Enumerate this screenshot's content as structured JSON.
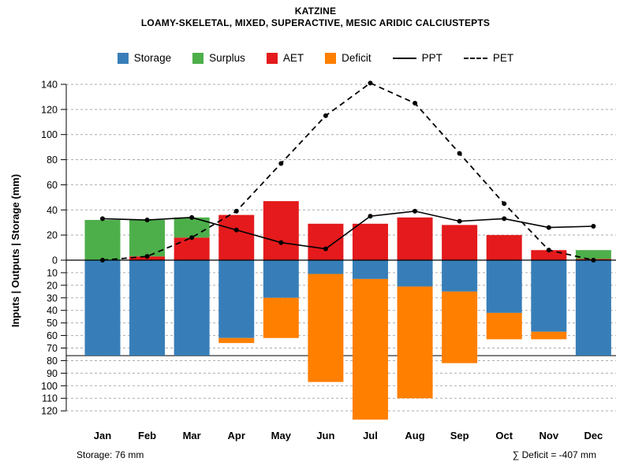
{
  "header": {
    "title": "KATZINE",
    "subtitle": "LOAMY-SKELETAL, MIXED, SUPERACTIVE, MESIC ARIDIC CALCIUSTEPTS"
  },
  "legend": [
    {
      "label": "Storage",
      "type": "box",
      "color": "#377EB8"
    },
    {
      "label": "Surplus",
      "type": "box",
      "color": "#4DAF4A"
    },
    {
      "label": "AET",
      "type": "box",
      "color": "#E41A1C"
    },
    {
      "label": "Deficit",
      "type": "box",
      "color": "#FF7F00"
    },
    {
      "label": "PPT",
      "type": "line",
      "style": "solid",
      "color": "#000000"
    },
    {
      "label": "PET",
      "type": "line",
      "style": "dashed",
      "color": "#000000"
    }
  ],
  "chart_data": {
    "type": "bar",
    "subtype": "monthly soil water balance: stacked bars above zero (AET+Surplus) and below zero (Storage+Deficit) with PPT/PET line overlays",
    "categories": [
      "Jan",
      "Feb",
      "Mar",
      "Apr",
      "May",
      "Jun",
      "Jul",
      "Aug",
      "Sep",
      "Oct",
      "Nov",
      "Dec"
    ],
    "series": [
      {
        "name": "AET",
        "type": "bar",
        "direction": "up",
        "color": "#E41A1C",
        "values": [
          0,
          3,
          18,
          36,
          47,
          29,
          29,
          34,
          28,
          20,
          8,
          1
        ]
      },
      {
        "name": "Surplus",
        "type": "bar",
        "direction": "up",
        "stack_on": "AET",
        "color": "#4DAF4A",
        "values": [
          32,
          29,
          16,
          0,
          0,
          0,
          0,
          0,
          0,
          0,
          0,
          7
        ]
      },
      {
        "name": "Storage",
        "type": "bar",
        "direction": "down",
        "color": "#377EB8",
        "values": [
          76,
          76,
          76,
          62,
          30,
          11,
          15,
          21,
          25,
          42,
          57,
          76
        ]
      },
      {
        "name": "Deficit",
        "type": "bar",
        "direction": "down",
        "stack_on": "Storage",
        "color": "#FF7F00",
        "values": [
          0,
          0,
          0,
          4,
          32,
          86,
          112,
          89,
          57,
          21,
          6,
          0
        ]
      },
      {
        "name": "PPT",
        "type": "line",
        "style": "solid",
        "color": "#000000",
        "values": [
          33,
          32,
          34,
          24,
          14,
          9,
          35,
          39,
          31,
          33,
          26,
          27
        ]
      },
      {
        "name": "PET",
        "type": "line",
        "style": "dashed",
        "color": "#000000",
        "values": [
          0,
          3,
          18,
          39,
          77,
          115,
          141,
          125,
          85,
          45,
          8,
          0
        ]
      }
    ],
    "ylabel": "Inputs | Outputs | Storage    (mm)",
    "y_axis": {
      "upper_ticks": [
        0,
        20,
        40,
        60,
        80,
        100,
        120,
        140
      ],
      "lower_ticks": [
        10,
        20,
        30,
        40,
        50,
        60,
        70,
        80,
        90,
        100,
        110,
        120
      ],
      "lower_region_is_mirrored_negative": true
    },
    "zero_line": 0,
    "max_storage_line": 76,
    "grid": "dashed"
  },
  "annotations": {
    "storage_note": "Storage: 76 mm",
    "deficit_note": "∑ Deficit = -407 mm"
  }
}
